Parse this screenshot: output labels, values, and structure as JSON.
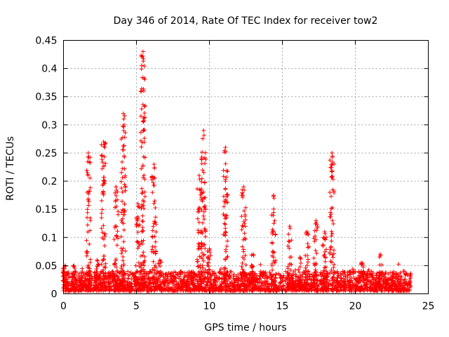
{
  "chart_data": {
    "type": "scatter",
    "title": "Day 346 of 2014, Rate Of TEC Index for receiver tow2",
    "xlabel": "GPS time / hours",
    "ylabel": "ROTI / TECUs",
    "xlim": [
      0,
      25
    ],
    "ylim": [
      0,
      0.45
    ],
    "x_ticks": [
      "0",
      "5",
      "10",
      "15",
      "20",
      "25"
    ],
    "y_ticks": [
      "0",
      "0.05",
      "0.1",
      "0.15",
      "0.2",
      "0.25",
      "0.3",
      "0.35",
      "0.4",
      "0.45"
    ],
    "grid": true,
    "marker": "+",
    "color": "#ff0000",
    "series": [
      {
        "name": "ROTI",
        "baseline": {
          "x_range": [
            0,
            23.8
          ],
          "low": 0.005,
          "high": 0.04
        },
        "spikes": [
          {
            "x": 0.1,
            "peak": 0.05
          },
          {
            "x": 0.7,
            "peak": 0.05
          },
          {
            "x": 1.7,
            "peak": 0.25
          },
          {
            "x": 2.3,
            "peak": 0.06
          },
          {
            "x": 2.75,
            "peak": 0.27
          },
          {
            "x": 3.6,
            "peak": 0.19
          },
          {
            "x": 4.1,
            "peak": 0.32
          },
          {
            "x": 5.1,
            "peak": 0.16
          },
          {
            "x": 5.45,
            "peak": 0.43
          },
          {
            "x": 6.2,
            "peak": 0.23
          },
          {
            "x": 6.6,
            "peak": 0.06
          },
          {
            "x": 9.3,
            "peak": 0.21
          },
          {
            "x": 9.6,
            "peak": 0.29
          },
          {
            "x": 10.0,
            "peak": 0.08
          },
          {
            "x": 11.1,
            "peak": 0.26
          },
          {
            "x": 12.35,
            "peak": 0.19
          },
          {
            "x": 13.0,
            "peak": 0.07
          },
          {
            "x": 14.4,
            "peak": 0.175
          },
          {
            "x": 15.5,
            "peak": 0.12
          },
          {
            "x": 16.2,
            "peak": 0.065
          },
          {
            "x": 16.7,
            "peak": 0.11
          },
          {
            "x": 17.3,
            "peak": 0.13
          },
          {
            "x": 17.9,
            "peak": 0.11
          },
          {
            "x": 18.4,
            "peak": 0.25
          },
          {
            "x": 20.4,
            "peak": 0.055
          },
          {
            "x": 21.7,
            "peak": 0.07
          }
        ]
      }
    ]
  }
}
